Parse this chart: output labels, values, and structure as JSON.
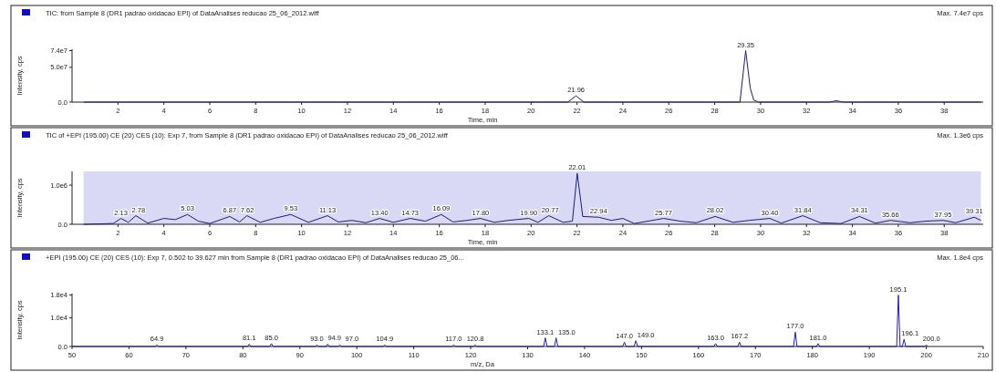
{
  "chart_data": [
    {
      "type": "line",
      "title": "TIC: from Sample 8 (DR1 padrao oxidacao EPI) of DataAnalises reducao 25_06_2012.wiff",
      "subtitle": "Max. 7.4e7 cps",
      "xlabel": "Time, min",
      "ylabel": "Intensity, cps",
      "x": [
        0.5,
        21.6,
        21.96,
        22.3,
        29.1,
        29.35,
        29.55,
        29.7,
        29.9,
        33.0,
        33.3,
        33.6,
        39.6
      ],
      "series": [
        {
          "color": "#1c1c7a",
          "values": [
            0,
            0,
            9000000,
            0,
            0,
            74000000,
            20000000,
            3000000,
            0,
            0,
            2000000,
            0,
            0
          ]
        }
      ],
      "xlim": [
        0,
        39.7
      ],
      "ylim": [
        0,
        76000000
      ],
      "xticks": [
        2,
        4,
        6,
        8,
        10,
        12,
        14,
        16,
        18,
        20,
        22,
        24,
        26,
        28,
        30,
        32,
        34,
        36,
        38
      ],
      "yticks": [
        {
          "value": 0,
          "label": "0.0"
        },
        {
          "value": 50000000,
          "label": "5.0e7"
        },
        {
          "value": 74000000,
          "label": "7.4e7"
        }
      ],
      "annotations": [
        {
          "text": "21.96",
          "x": 21.96,
          "y": 9000000
        },
        {
          "text": "29.35",
          "x": 29.35,
          "y": 74000000
        }
      ]
    },
    {
      "type": "line",
      "title": "TIC of +EPI (195.00) CE (20) CES (10): Exp 7, from Sample 8 (DR1 padrao oxidacao EPI) of DataAnalises reducao 25_06_2012.wiff",
      "subtitle": "Max. 1.3e6 cps",
      "xlabel": "Time, min",
      "ylabel": "Intensity, cps",
      "x": [
        0.5,
        1.8,
        2.13,
        2.45,
        2.78,
        3.3,
        4.0,
        4.5,
        5.03,
        5.5,
        6.0,
        6.87,
        7.3,
        7.62,
        8.2,
        8.8,
        9.53,
        10.3,
        11.13,
        11.6,
        12.2,
        12.8,
        13.4,
        14.0,
        14.73,
        15.4,
        16.09,
        16.6,
        17.2,
        17.8,
        18.4,
        19.0,
        19.9,
        20.3,
        20.77,
        21.4,
        21.8,
        22.01,
        22.25,
        22.94,
        23.5,
        24.0,
        24.5,
        25.77,
        26.5,
        27.2,
        28.02,
        28.8,
        29.5,
        30.4,
        30.9,
        31.84,
        32.6,
        33.5,
        34.31,
        35.0,
        35.66,
        36.5,
        37.2,
        37.95,
        38.5,
        39.31,
        39.6
      ],
      "series": [
        {
          "color": "#1c1c7a",
          "values": [
            0,
            20000,
            150000,
            50000,
            220000,
            30000,
            150000,
            120000,
            250000,
            80000,
            20000,
            200000,
            60000,
            220000,
            50000,
            150000,
            250000,
            50000,
            220000,
            60000,
            100000,
            40000,
            150000,
            50000,
            150000,
            80000,
            250000,
            60000,
            100000,
            150000,
            50000,
            100000,
            150000,
            50000,
            220000,
            50000,
            80000,
            1300000,
            200000,
            180000,
            100000,
            150000,
            20000,
            150000,
            80000,
            40000,
            200000,
            50000,
            100000,
            150000,
            30000,
            220000,
            40000,
            20000,
            200000,
            30000,
            100000,
            40000,
            80000,
            100000,
            40000,
            180000,
            100000
          ]
        }
      ],
      "xlim": [
        0,
        39.7
      ],
      "ylim": [
        0,
        1350000
      ],
      "xticks": [
        2,
        4,
        6,
        8,
        10,
        12,
        14,
        16,
        18,
        20,
        22,
        24,
        26,
        28,
        30,
        32,
        34,
        36,
        38
      ],
      "yticks": [
        {
          "value": 0,
          "label": "0.0"
        },
        {
          "value": 1000000,
          "label": "1.0e6"
        }
      ],
      "bands": [
        {
          "axis": "x",
          "from": 0.5,
          "to": 39.6,
          "color": "#d9d9f5"
        }
      ],
      "annotations": [
        {
          "text": "2.13",
          "x": 2.13,
          "y": 150000
        },
        {
          "text": "2.78",
          "x": 2.78,
          "y": 220000
        },
        {
          "text": "5.03",
          "x": 5.03,
          "y": 250000
        },
        {
          "text": "6.87",
          "x": 6.87,
          "y": 200000
        },
        {
          "text": "7.62",
          "x": 7.62,
          "y": 220000
        },
        {
          "text": "9.53",
          "x": 9.53,
          "y": 250000
        },
        {
          "text": "11.13",
          "x": 11.13,
          "y": 220000
        },
        {
          "text": "13.40",
          "x": 13.4,
          "y": 150000
        },
        {
          "text": "14.73",
          "x": 14.73,
          "y": 150000
        },
        {
          "text": "16.09",
          "x": 16.09,
          "y": 250000
        },
        {
          "text": "17.80",
          "x": 17.8,
          "y": 150000
        },
        {
          "text": "19.90",
          "x": 19.9,
          "y": 150000
        },
        {
          "text": "20.77",
          "x": 20.77,
          "y": 220000
        },
        {
          "text": "22.01",
          "x": 22.01,
          "y": 1300000
        },
        {
          "text": "22.94",
          "x": 22.94,
          "y": 180000
        },
        {
          "text": "25.77",
          "x": 25.77,
          "y": 150000
        },
        {
          "text": "28.02",
          "x": 28.02,
          "y": 200000
        },
        {
          "text": "30.40",
          "x": 30.4,
          "y": 150000
        },
        {
          "text": "31.84",
          "x": 31.84,
          "y": 220000
        },
        {
          "text": "34.31",
          "x": 34.31,
          "y": 200000
        },
        {
          "text": "35.66",
          "x": 35.66,
          "y": 100000
        },
        {
          "text": "37.95",
          "x": 37.95,
          "y": 100000
        },
        {
          "text": "39.31",
          "x": 39.31,
          "y": 180000
        }
      ]
    },
    {
      "type": "line",
      "title": "+EPI (195.00) CE (20) CES (10): Exp 7, 0.502 to 39.627 min from Sample 8 (DR1 padrao oxidacao EPI) of DataAnalises reducao 25_06...",
      "subtitle": "Max. 1.8e4 cps",
      "xlabel": "m/z, Da",
      "ylabel": "Intensity, cps",
      "x": [
        50,
        64.6,
        64.9,
        65.2,
        80.8,
        81.1,
        81.4,
        84.7,
        85.0,
        85.3,
        92.7,
        93.0,
        93.3,
        94.6,
        94.9,
        95.2,
        96.7,
        97.0,
        97.3,
        104.6,
        104.9,
        105.2,
        116.7,
        117.0,
        117.3,
        120.5,
        120.8,
        121.1,
        132.8,
        133.1,
        133.4,
        134.7,
        135.0,
        135.3,
        146.7,
        147.0,
        147.3,
        148.7,
        149.0,
        149.3,
        162.7,
        163.0,
        163.3,
        166.9,
        167.2,
        167.5,
        176.7,
        177.0,
        177.3,
        180.7,
        181.0,
        181.3,
        194.8,
        195.1,
        195.4,
        195.8,
        196.1,
        196.4,
        199.7,
        200.0,
        200.3
      ],
      "series": [
        {
          "color": "#1f1fa8",
          "values": [
            0,
            0,
            500,
            0,
            0,
            800,
            0,
            0,
            1000,
            0,
            0,
            500,
            0,
            0,
            800,
            0,
            0,
            500,
            0,
            0,
            500,
            0,
            0,
            500,
            0,
            0,
            500,
            0,
            0,
            3000,
            0,
            0,
            3000,
            0,
            0,
            1500,
            0,
            0,
            2000,
            0,
            0,
            1000,
            0,
            0,
            1500,
            0,
            0,
            5000,
            0,
            0,
            1000,
            0,
            0,
            18000,
            0,
            0,
            2500,
            0,
            0,
            500,
            0
          ]
        }
      ],
      "xlim": [
        50,
        210
      ],
      "ylim": [
        0,
        18500
      ],
      "xticks": [
        50,
        60,
        70,
        80,
        90,
        100,
        110,
        120,
        130,
        140,
        150,
        160,
        170,
        180,
        190,
        200,
        210
      ],
      "yticks": [
        {
          "value": 0,
          "label": "0.0"
        },
        {
          "value": 10000,
          "label": "1.0e4"
        },
        {
          "value": 18000,
          "label": "1.8e4"
        }
      ],
      "annotations": [
        {
          "text": "64.9",
          "x": 64.9,
          "y": 500
        },
        {
          "text": "81.1",
          "x": 81.1,
          "y": 800
        },
        {
          "text": "85.0",
          "x": 85.0,
          "y": 1000
        },
        {
          "text": "93.0",
          "x": 93.0,
          "y": 500
        },
        {
          "text": "94.9",
          "x": 94.9,
          "y": 800
        },
        {
          "text": "97.0",
          "x": 97.0,
          "y": 500
        },
        {
          "text": "104.9",
          "x": 104.9,
          "y": 500
        },
        {
          "text": "117.0",
          "x": 117.0,
          "y": 500
        },
        {
          "text": "120.8",
          "x": 120.8,
          "y": 500
        },
        {
          "text": "133.1",
          "x": 133.1,
          "y": 3000
        },
        {
          "text": "135.0",
          "x": 135.0,
          "y": 3000
        },
        {
          "text": "147.0",
          "x": 147.0,
          "y": 1500
        },
        {
          "text": "149.0",
          "x": 149.0,
          "y": 2000
        },
        {
          "text": "163.0",
          "x": 163.0,
          "y": 1000
        },
        {
          "text": "167.2",
          "x": 167.2,
          "y": 1500
        },
        {
          "text": "177.0",
          "x": 177.0,
          "y": 5000
        },
        {
          "text": "181.0",
          "x": 181.0,
          "y": 1000
        },
        {
          "text": "195.1",
          "x": 195.1,
          "y": 18000
        },
        {
          "text": "196.1",
          "x": 196.1,
          "y": 2500
        },
        {
          "text": "200.0",
          "x": 200.0,
          "y": 500
        }
      ]
    }
  ]
}
